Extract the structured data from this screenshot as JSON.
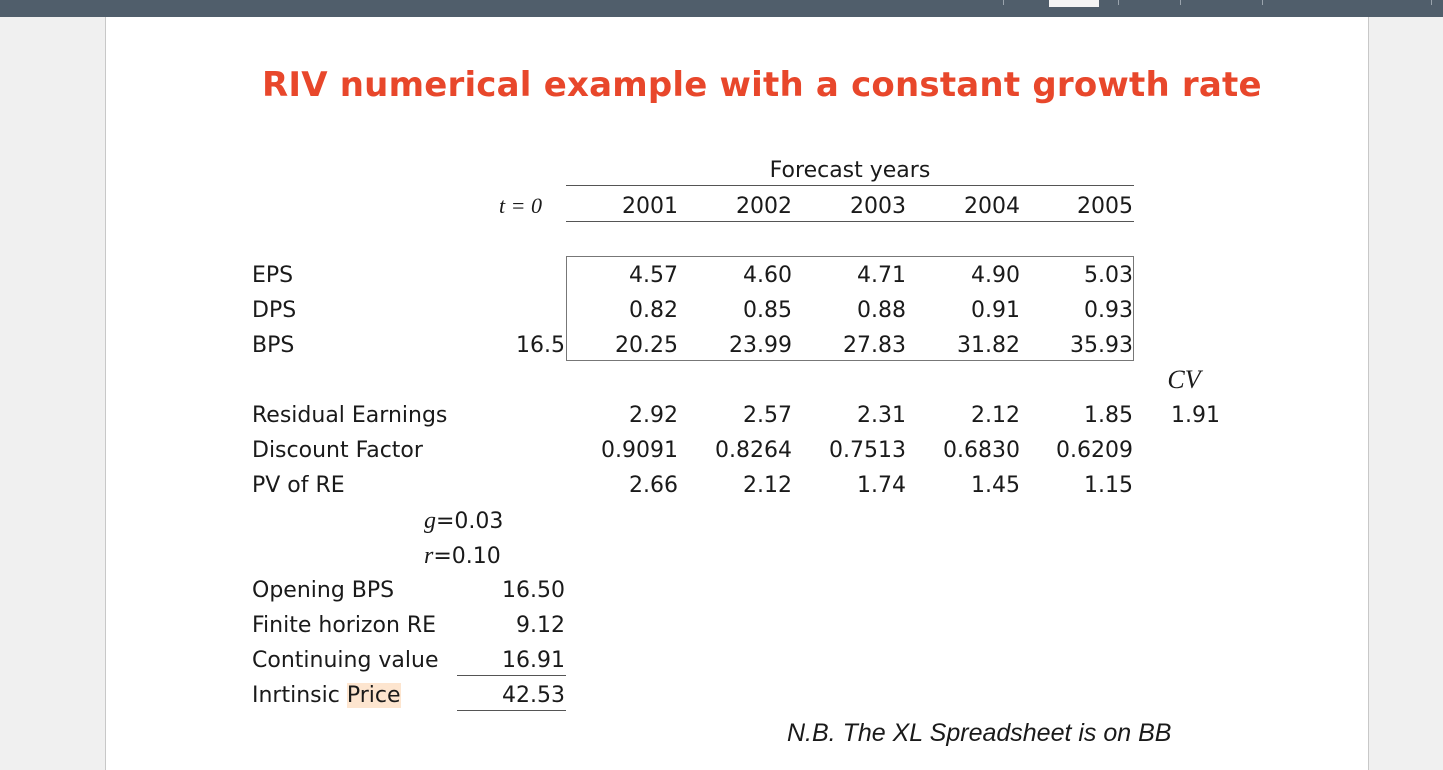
{
  "title": "RIV numerical example with a constant growth rate",
  "forecast_header": "Forecast years",
  "t0_label": "t = 0",
  "years": [
    "2001",
    "2002",
    "2003",
    "2004",
    "2005"
  ],
  "rows": {
    "eps": {
      "label": "EPS",
      "t0": "",
      "values": [
        "4.57",
        "4.60",
        "4.71",
        "4.90",
        "5.03"
      ]
    },
    "dps": {
      "label": "DPS",
      "t0": "",
      "values": [
        "0.82",
        "0.85",
        "0.88",
        "0.91",
        "0.93"
      ]
    },
    "bps": {
      "label": "BPS",
      "t0": "16.5",
      "values": [
        "20.25",
        "23.99",
        "27.83",
        "31.82",
        "35.93"
      ]
    }
  },
  "cv_header": "CV",
  "residual": {
    "label": "Residual Earnings",
    "values": [
      "2.92",
      "2.57",
      "2.31",
      "2.12",
      "1.85"
    ],
    "cv": "1.91"
  },
  "discount": {
    "label": "Discount Factor",
    "values": [
      "0.9091",
      "0.8264",
      "0.7513",
      "0.6830",
      "0.6209"
    ]
  },
  "pv_re": {
    "label": "PV of RE",
    "values": [
      "2.66",
      "2.12",
      "1.74",
      "1.45",
      "1.15"
    ]
  },
  "params": {
    "g_symbol": "g",
    "g_value": "=0.03",
    "r_symbol": "r",
    "r_value": "=0.10"
  },
  "summary": {
    "opening_bps": {
      "label": "Opening BPS",
      "value": "16.50"
    },
    "finite_re": {
      "label": "Finite horizon RE",
      "value": "9.12"
    },
    "continuing": {
      "label": "Continuing value",
      "value": "16.91"
    },
    "intrinsic": {
      "label_a": "Inrtinsic ",
      "label_b": "Price",
      "value": "42.53"
    }
  },
  "footnote": "N.B. The XL Spreadsheet is on BB"
}
